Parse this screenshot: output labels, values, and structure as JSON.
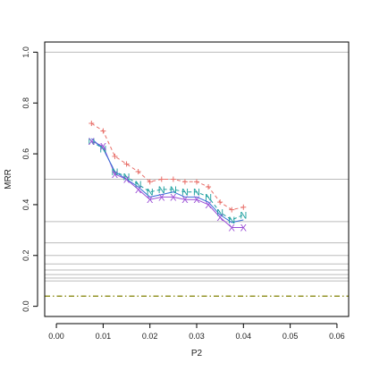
{
  "chart_data": {
    "type": "line",
    "xlabel": "P2",
    "ylabel": "MRR",
    "xlim": [
      -0.0025,
      0.0625
    ],
    "ylim": [
      -0.04,
      1.04
    ],
    "x_ticks": [
      "0.00",
      "0.01",
      "0.02",
      "0.03",
      "0.04",
      "0.05",
      "0.06"
    ],
    "y_ticks": [
      "0.0",
      "0.2",
      "0.4",
      "0.6",
      "0.8",
      "1.0"
    ],
    "reference_lines": {
      "color": "#bbbbbb",
      "values": [
        1.0,
        0.5,
        0.3333,
        0.25,
        0.2,
        0.1667,
        0.1429,
        0.125,
        0.1111,
        0.1
      ]
    },
    "baseline": {
      "value": 0.04,
      "color": "#808000",
      "style": "dashdot"
    },
    "x": [
      0.0075,
      0.01,
      0.0125,
      0.015,
      0.0175,
      0.02,
      0.0225,
      0.025,
      0.0275,
      0.03,
      0.0325,
      0.035,
      0.0375,
      0.04
    ],
    "series": [
      {
        "marker": "+",
        "color": "#e8706a",
        "dash": "4,3",
        "values": [
          0.72,
          0.69,
          0.59,
          0.56,
          0.53,
          0.49,
          0.5,
          0.5,
          0.49,
          0.49,
          0.47,
          0.41,
          0.38,
          0.39
        ]
      },
      {
        "marker": "N",
        "color": "#1fa0a0",
        "dash": "4,3",
        "values": [
          0.65,
          0.62,
          0.53,
          0.51,
          0.48,
          0.45,
          0.46,
          0.46,
          0.45,
          0.45,
          0.43,
          0.37,
          0.34,
          0.36
        ]
      },
      {
        "marker": "X",
        "color": "#9b4fd6",
        "dash": "",
        "values": [
          0.65,
          0.63,
          0.52,
          0.5,
          0.46,
          0.42,
          0.43,
          0.43,
          0.42,
          0.42,
          0.4,
          0.35,
          0.31,
          0.31
        ]
      },
      {
        "marker": "",
        "color": "#3a6fd8",
        "dash": "",
        "values": [
          0.66,
          0.62,
          0.53,
          0.5,
          0.47,
          0.43,
          0.44,
          0.45,
          0.43,
          0.43,
          0.41,
          0.36,
          0.33,
          0.34
        ]
      }
    ]
  }
}
